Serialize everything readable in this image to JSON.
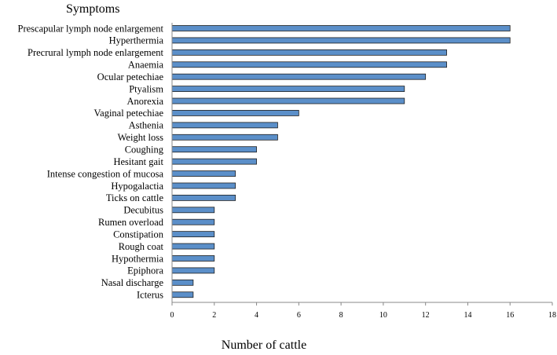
{
  "chart_data": {
    "type": "bar",
    "orientation": "horizontal",
    "title": "",
    "ylabel": "Symptoms",
    "xlabel": "Number of cattle",
    "xlim": [
      0,
      18
    ],
    "xticks": [
      0,
      2,
      4,
      6,
      8,
      10,
      12,
      14,
      16,
      18
    ],
    "grid": false,
    "bar_color": "#5b8fc9",
    "categories": [
      "Prescapular lymph node enlargement",
      "Hyperthermia",
      "Precrural lymph node enlargement",
      "Anaemia",
      "Ocular petechiae",
      "Ptyalism",
      "Anorexia",
      "Vaginal petechiae",
      "Asthenia",
      "Weight loss",
      "Coughing",
      "Hesitant gait",
      "Intense congestion of mucosa",
      "Hypogalactia",
      "Ticks on cattle",
      "Decubitus",
      "Rumen overload",
      "Constipation",
      "Rough coat",
      "Hypothermia",
      "Epiphora",
      "Nasal discharge",
      "Icterus"
    ],
    "values": [
      16,
      16,
      13,
      13,
      12,
      11,
      11,
      6,
      5,
      5,
      4,
      4,
      3,
      3,
      3,
      2,
      2,
      2,
      2,
      2,
      2,
      1,
      1
    ]
  }
}
